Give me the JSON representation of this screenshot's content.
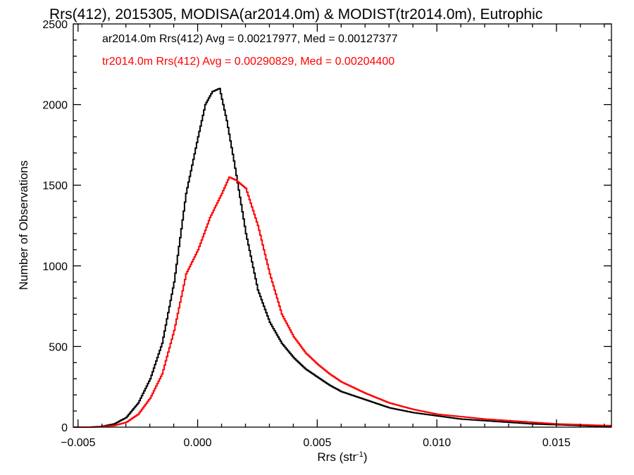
{
  "chart_data": {
    "type": "line",
    "title": "Rrs(412), 2015305, MODISA(ar2014.0m) & MODIST(tr2014.0m), Eutrophic",
    "xlabel": "Rrs (str",
    "xlabel_sup": "-1",
    "xlabel_end": ")",
    "ylabel": "Number of Observations",
    "xlim": [
      -0.0052,
      0.0173
    ],
    "ylim": [
      0,
      2500
    ],
    "xticks": [
      -0.005,
      0.0,
      0.005,
      0.01,
      0.015
    ],
    "xtick_labels": [
      "−0.005",
      "0.000",
      "0.005",
      "0.010",
      "0.015"
    ],
    "yticks": [
      0,
      500,
      1000,
      1500,
      2000,
      2500
    ],
    "ytick_labels": [
      "0",
      "500",
      "1000",
      "1500",
      "2000",
      "2500"
    ],
    "grid": false,
    "legend_position": "top-left",
    "series": [
      {
        "name": "ar2014.0m Rrs(412) Avg = 0.00217977, Med = 0.00127377",
        "color": "#000000",
        "x": [
          -0.0045,
          -0.004,
          -0.0035,
          -0.003,
          -0.0025,
          -0.002,
          -0.0015,
          -0.001,
          -0.0005,
          0.0,
          0.0003,
          0.0006,
          0.0009,
          0.0012,
          0.0015,
          0.002,
          0.0025,
          0.003,
          0.0035,
          0.004,
          0.0045,
          0.005,
          0.0055,
          0.006,
          0.007,
          0.008,
          0.009,
          0.01,
          0.011,
          0.012,
          0.013,
          0.014,
          0.015,
          0.016,
          0.017
        ],
        "y": [
          0,
          5,
          20,
          60,
          150,
          300,
          520,
          900,
          1450,
          1800,
          2000,
          2080,
          2100,
          1900,
          1650,
          1200,
          850,
          650,
          520,
          430,
          360,
          310,
          260,
          220,
          170,
          120,
          90,
          70,
          50,
          40,
          30,
          20,
          15,
          10,
          5
        ]
      },
      {
        "name": "tr2014.0m Rrs(412) Avg = 0.00290829, Med = 0.00204400",
        "color": "#ff0000",
        "x": [
          -0.0045,
          -0.004,
          -0.0035,
          -0.003,
          -0.0025,
          -0.002,
          -0.0015,
          -0.001,
          -0.0005,
          0.0,
          0.0005,
          0.001,
          0.0013,
          0.0016,
          0.002,
          0.0025,
          0.003,
          0.0035,
          0.004,
          0.0045,
          0.005,
          0.0055,
          0.006,
          0.007,
          0.008,
          0.009,
          0.01,
          0.011,
          0.012,
          0.013,
          0.014,
          0.015,
          0.016,
          0.017
        ],
        "y": [
          0,
          3,
          10,
          30,
          80,
          180,
          330,
          600,
          950,
          1100,
          1300,
          1450,
          1550,
          1530,
          1480,
          1250,
          950,
          700,
          560,
          460,
          390,
          330,
          280,
          210,
          150,
          110,
          80,
          65,
          50,
          40,
          30,
          20,
          15,
          10
        ]
      }
    ]
  }
}
